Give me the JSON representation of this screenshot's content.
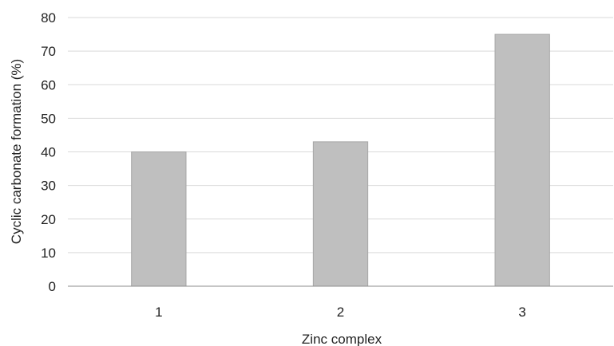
{
  "chart_data": {
    "type": "bar",
    "title": "",
    "xlabel": "Zinc complex",
    "ylabel": "Cyclic carbonate formation (%)",
    "categories": [
      "1",
      "2",
      "3"
    ],
    "values": [
      40,
      43,
      75
    ],
    "ylim": [
      0,
      80
    ],
    "yticks": [
      "0",
      "10",
      "20",
      "30",
      "40",
      "50",
      "60",
      "70",
      "80"
    ],
    "grid": true,
    "legend": "none",
    "colors": {
      "bar_fill": "#bfbfbf",
      "bar_stroke": "#a6a6a6",
      "gridline": "#d9d9d9",
      "axis_line": "#8c8c8c",
      "text": "#222222"
    }
  }
}
